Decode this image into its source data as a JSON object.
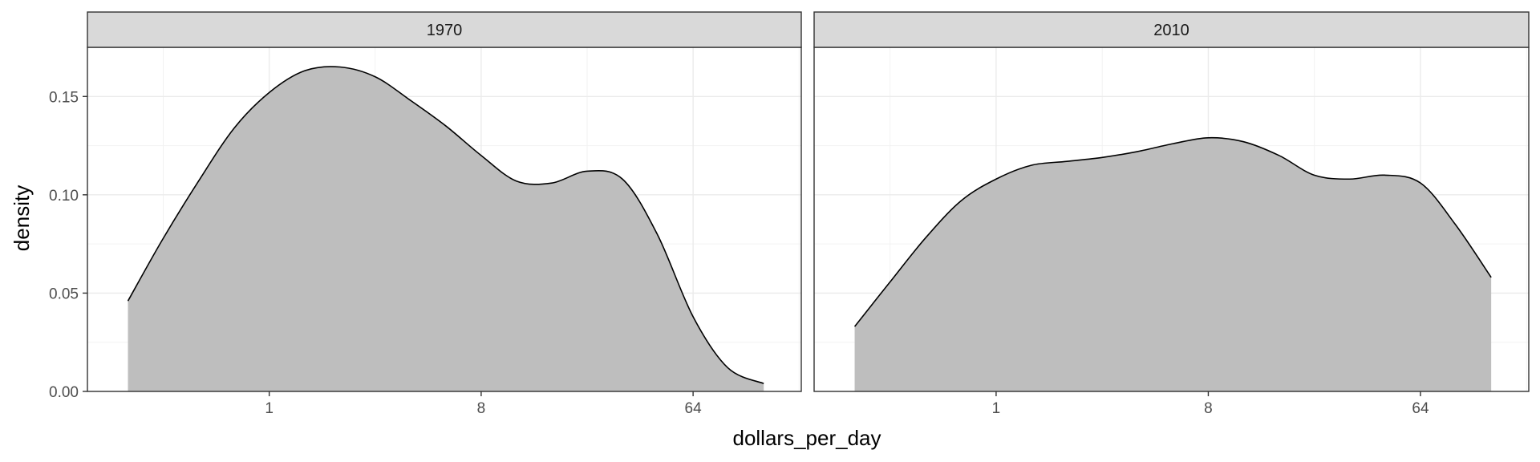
{
  "chart_data": {
    "type": "area",
    "xlabel": "dollars_per_day",
    "ylabel": "density",
    "x_scale": "log2",
    "x_ticks": [
      1,
      8,
      64
    ],
    "x_tick_labels": [
      "1",
      "8",
      "64"
    ],
    "y_ticks": [
      0.0,
      0.05,
      0.1,
      0.15
    ],
    "y_tick_labels": [
      "0.00",
      "0.05",
      "0.10",
      "0.15"
    ],
    "ylim": [
      0,
      0.175
    ],
    "xlim": [
      0.168,
      185
    ],
    "grid": true,
    "fill_color": "#bebebe",
    "panels": [
      {
        "label": "1970",
        "x": [
          0.25,
          0.35,
          0.5,
          0.71,
          1,
          1.41,
          2,
          2.83,
          4,
          5.66,
          8,
          11.3,
          16,
          22.6,
          32,
          45,
          64,
          90,
          128
        ],
        "y": [
          0.046,
          0.077,
          0.107,
          0.134,
          0.152,
          0.163,
          0.165,
          0.16,
          0.148,
          0.135,
          0.12,
          0.107,
          0.106,
          0.112,
          0.108,
          0.08,
          0.038,
          0.012,
          0.004
        ]
      },
      {
        "label": "2010",
        "x": [
          0.25,
          0.35,
          0.5,
          0.71,
          1,
          1.41,
          2,
          2.83,
          4,
          5.66,
          8,
          11.3,
          16,
          22.6,
          32,
          45,
          64,
          90,
          128
        ],
        "y": [
          0.033,
          0.055,
          0.078,
          0.097,
          0.108,
          0.115,
          0.117,
          0.119,
          0.122,
          0.126,
          0.129,
          0.127,
          0.12,
          0.11,
          0.108,
          0.11,
          0.106,
          0.085,
          0.058
        ]
      }
    ]
  }
}
